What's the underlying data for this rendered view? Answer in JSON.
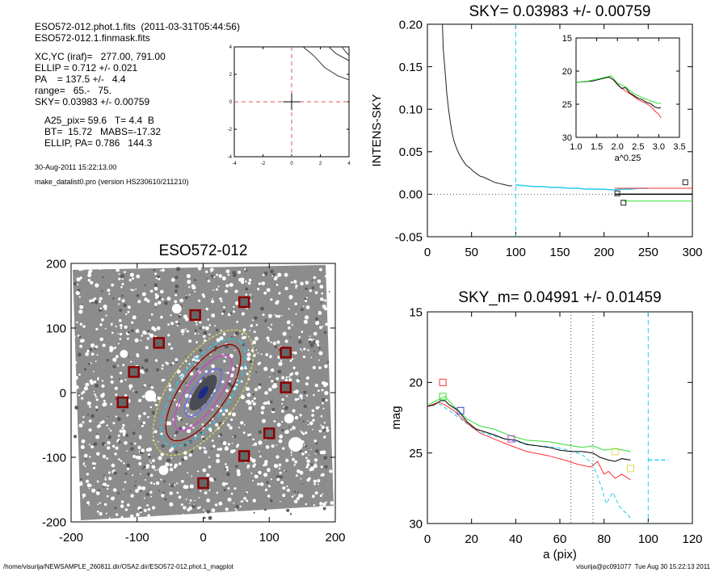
{
  "info": {
    "file_line": "ESO572-012.phot.1.fits  (2011-03-31T05:44:56)",
    "mask_line": "ESO572-012.1.finmask.fits",
    "center_line": "XC,YC (iraf)=   277.00, 791.00",
    "ellip_line": "ELLIP = 0.712 +/- 0.021",
    "pa_line": "PA    = 137.5 +/-   4.4",
    "range_line": "range=   65.-   75.",
    "sky_line": "SKY= 0.03983 +/- 0.00759",
    "a25_line": "A25_pix= 59.6   T= 4.4  B",
    "bt_line": "BT=  15.72   MABS=-17.32",
    "ellip_pa_line": "ELLIP, PA= 0.786   144.3",
    "date_line": "30-Aug-2011 15:22:13.00",
    "prog_line": "make_datalist0.pro (version HS230610/211210)"
  },
  "footer": {
    "path": "/home/visurija/NEWSAMPLE_260811.dir/OSA2.dir/ESO572-012.phot.1_magplot",
    "user": "visurija@pc091077  Tue Aug 30 15:22:13 2011"
  },
  "colors": {
    "red": "#ff3333",
    "green": "#33dd33",
    "cyan": "#22ccee",
    "black": "#000000",
    "gray": "#777777",
    "darkred": "#8b0000",
    "yellow": "#dddd55",
    "blue": "#3344cc",
    "magenta": "#cc44cc"
  },
  "chart_data": [
    {
      "id": "center-plot",
      "type": "line",
      "title": "",
      "xlim": [
        -4,
        4
      ],
      "ylim": [
        -4,
        4
      ],
      "xticks": [
        "-4",
        "-2",
        "0",
        "2",
        "4"
      ],
      "yticks": [
        "-4",
        "-2",
        "0",
        "2",
        "4"
      ],
      "contours": [
        [
          [
            0.8,
            4
          ],
          [
            1.5,
            3.4
          ],
          [
            2.3,
            2.5
          ],
          [
            3.2,
            1.9
          ],
          [
            4,
            1.6
          ]
        ],
        [
          [
            2.6,
            4
          ],
          [
            3.1,
            3.5
          ],
          [
            4,
            3.0
          ]
        ],
        [
          [
            3.5,
            4
          ],
          [
            3.8,
            3.6
          ],
          [
            4,
            3.4
          ]
        ]
      ]
    },
    {
      "id": "sky-plot",
      "type": "line",
      "title": "SKY= 0.03983 +/- 0.00759",
      "xlabel": "",
      "ylabel": "INTENS-SKY",
      "xlim": [
        0,
        300
      ],
      "ylim": [
        -0.05,
        0.2
      ],
      "xticks": [
        "0",
        "50",
        "100",
        "150",
        "200",
        "250",
        "300"
      ],
      "yticks": [
        "-0.05",
        "0.00",
        "0.05",
        "0.10",
        "0.15",
        "0.20"
      ],
      "vline_cyan": 100,
      "profile": [
        [
          17,
          0.2
        ],
        [
          18,
          0.17
        ],
        [
          20,
          0.145
        ],
        [
          22,
          0.118
        ],
        [
          24,
          0.1
        ],
        [
          26,
          0.085
        ],
        [
          28,
          0.072
        ],
        [
          30,
          0.063
        ],
        [
          33,
          0.054
        ],
        [
          36,
          0.047
        ],
        [
          40,
          0.04
        ],
        [
          44,
          0.034
        ],
        [
          48,
          0.031
        ],
        [
          52,
          0.027
        ],
        [
          56,
          0.024
        ],
        [
          60,
          0.021
        ],
        [
          64,
          0.02
        ],
        [
          68,
          0.018
        ],
        [
          72,
          0.016
        ],
        [
          76,
          0.014
        ],
        [
          80,
          0.013
        ],
        [
          84,
          0.012
        ],
        [
          88,
          0.011
        ],
        [
          92,
          0.01
        ],
        [
          96,
          0.01
        ]
      ],
      "sky_profile": [
        [
          100,
          0.011
        ],
        [
          110,
          0.01
        ],
        [
          120,
          0.009
        ],
        [
          130,
          0.009
        ],
        [
          140,
          0.008
        ],
        [
          150,
          0.008
        ],
        [
          160,
          0.007
        ],
        [
          170,
          0.007
        ],
        [
          180,
          0.006
        ],
        [
          190,
          0.006
        ],
        [
          200,
          0.006
        ],
        [
          210,
          0.005
        ],
        [
          220,
          0.006
        ],
        [
          230,
          0.006
        ],
        [
          240,
          0.007
        ],
        [
          250,
          0.007
        ]
      ],
      "sky_levels": {
        "red": 0.007,
        "black": 0.0,
        "green": -0.008
      },
      "markers": [
        [
          215,
          0.001
        ],
        [
          222,
          -0.01
        ],
        [
          292,
          0.014
        ]
      ],
      "inset": {
        "xlabel": "a^0.25",
        "xlim": [
          1.0,
          3.5
        ],
        "ylim": [
          30,
          15
        ],
        "xticks": [
          "1.0",
          "1.5",
          "2.0",
          "2.5",
          "3.0",
          "3.5"
        ],
        "yticks": [
          "15",
          "20",
          "25",
          "30"
        ],
        "black": [
          [
            1.0,
            21.7
          ],
          [
            1.2,
            21.6
          ],
          [
            1.4,
            21.5
          ],
          [
            1.6,
            21.2
          ],
          [
            1.8,
            20.9
          ],
          [
            1.9,
            21.3
          ],
          [
            2.0,
            22.0
          ],
          [
            2.1,
            22.6
          ],
          [
            2.2,
            22.5
          ],
          [
            2.3,
            23.3
          ],
          [
            2.4,
            23.7
          ],
          [
            2.5,
            24.1
          ],
          [
            2.6,
            24.3
          ],
          [
            2.7,
            24.7
          ],
          [
            2.8,
            24.9
          ],
          [
            2.9,
            25.4
          ],
          [
            3.0,
            25.6
          ],
          [
            3.05,
            25.5
          ]
        ],
        "red": [
          [
            1.9,
            21.3
          ],
          [
            2.1,
            22.6
          ],
          [
            2.3,
            23.4
          ],
          [
            2.5,
            24.3
          ],
          [
            2.7,
            24.9
          ],
          [
            2.8,
            25.3
          ],
          [
            2.9,
            26.0
          ],
          [
            3.0,
            26.5
          ],
          [
            3.05,
            27.1
          ]
        ],
        "green": [
          [
            1.0,
            21.7
          ],
          [
            1.3,
            21.5
          ],
          [
            1.6,
            21.1
          ],
          [
            1.85,
            20.7
          ],
          [
            2.0,
            21.8
          ],
          [
            2.2,
            22.4
          ],
          [
            2.4,
            23.4
          ],
          [
            2.6,
            24.0
          ],
          [
            2.8,
            24.5
          ],
          [
            3.0,
            24.9
          ],
          [
            3.05,
            24.8
          ]
        ]
      }
    },
    {
      "id": "image-plot",
      "type": "scatter",
      "title": "ESO572-012",
      "xlim": [
        -200,
        200
      ],
      "ylim": [
        -200,
        200
      ],
      "xticks": [
        "-200",
        "-100",
        "0",
        "100",
        "200"
      ],
      "yticks": [
        "-200",
        "-100",
        "0",
        "100",
        "200"
      ],
      "squares": [
        [
          -12,
          120
        ],
        [
          62,
          140
        ],
        [
          -67,
          77
        ],
        [
          125,
          62
        ],
        [
          -105,
          32
        ],
        [
          125,
          8
        ],
        [
          -122,
          -15
        ],
        [
          100,
          -63
        ],
        [
          62,
          -98
        ],
        [
          0,
          -140
        ]
      ],
      "ellipse_angle_deg": 47
    },
    {
      "id": "mag-plot",
      "type": "line",
      "title": "SKY_m=  0.04991 +/- 0.01459",
      "xlabel": "a (pix)",
      "ylabel": "mag",
      "xlim": [
        0,
        120
      ],
      "ylim": [
        30,
        15
      ],
      "xticks": [
        "0",
        "20",
        "40",
        "60",
        "80",
        "100",
        "120"
      ],
      "yticks": [
        "15",
        "20",
        "25",
        "30"
      ],
      "vlines_dotted": [
        65,
        75
      ],
      "vline_cyan": 100,
      "black": [
        [
          0,
          21.7
        ],
        [
          3,
          21.6
        ],
        [
          6,
          21.3
        ],
        [
          8,
          21.3
        ],
        [
          10,
          21.6
        ],
        [
          14,
          22.0
        ],
        [
          18,
          22.8
        ],
        [
          22,
          23.3
        ],
        [
          26,
          23.5
        ],
        [
          30,
          23.7
        ],
        [
          35,
          24.0
        ],
        [
          40,
          24.1
        ],
        [
          45,
          24.4
        ],
        [
          50,
          24.5
        ],
        [
          55,
          24.6
        ],
        [
          60,
          24.8
        ],
        [
          65,
          24.9
        ],
        [
          70,
          24.9
        ],
        [
          75,
          25.0
        ],
        [
          78,
          25.3
        ],
        [
          82,
          25.5
        ],
        [
          85,
          25.6
        ],
        [
          88,
          25.4
        ],
        [
          92,
          25.5
        ]
      ],
      "red": [
        [
          0,
          21.7
        ],
        [
          5,
          21.4
        ],
        [
          8,
          21.6
        ],
        [
          12,
          22.0
        ],
        [
          18,
          22.9
        ],
        [
          24,
          23.6
        ],
        [
          30,
          24.0
        ],
        [
          38,
          24.5
        ],
        [
          45,
          24.9
        ],
        [
          55,
          25.2
        ],
        [
          62,
          25.5
        ],
        [
          68,
          25.8
        ],
        [
          74,
          26.0
        ],
        [
          77,
          25.6
        ],
        [
          80,
          26.5
        ],
        [
          82,
          26.3
        ],
        [
          85,
          26.8
        ],
        [
          88,
          26.5
        ],
        [
          92,
          26.9
        ]
      ],
      "green": [
        [
          0,
          21.6
        ],
        [
          4,
          21.3
        ],
        [
          8,
          21.0
        ],
        [
          12,
          21.7
        ],
        [
          18,
          22.6
        ],
        [
          24,
          23.1
        ],
        [
          30,
          23.3
        ],
        [
          38,
          23.8
        ],
        [
          45,
          24.1
        ],
        [
          55,
          24.2
        ],
        [
          62,
          24.4
        ],
        [
          70,
          24.6
        ],
        [
          75,
          24.5
        ],
        [
          80,
          24.8
        ],
        [
          85,
          24.7
        ],
        [
          92,
          24.9
        ]
      ],
      "cyan_dash": [
        [
          5,
          21.5
        ],
        [
          10,
          22.0
        ],
        [
          16,
          22.7
        ],
        [
          22,
          23.4
        ],
        [
          30,
          23.8
        ],
        [
          40,
          24.2
        ],
        [
          50,
          24.5
        ],
        [
          58,
          24.6
        ],
        [
          64,
          24.8
        ],
        [
          70,
          25.1
        ],
        [
          75,
          25.8
        ],
        [
          79,
          27.5
        ],
        [
          81,
          28.6
        ],
        [
          84,
          27.8
        ],
        [
          87,
          28.8
        ],
        [
          92,
          29.6
        ]
      ],
      "cyan_level": 25.5,
      "markers": [
        {
          "x": 7,
          "y": 20.0,
          "c": "red"
        },
        {
          "x": 7,
          "y": 21.0,
          "c": "green"
        },
        {
          "x": 15,
          "y": 22.0,
          "c": "blue"
        },
        {
          "x": 38,
          "y": 24.0,
          "c": "magenta"
        },
        {
          "x": 85,
          "y": 24.9,
          "c": "yellow"
        },
        {
          "x": 92,
          "y": 26.1,
          "c": "yellow"
        }
      ]
    }
  ]
}
